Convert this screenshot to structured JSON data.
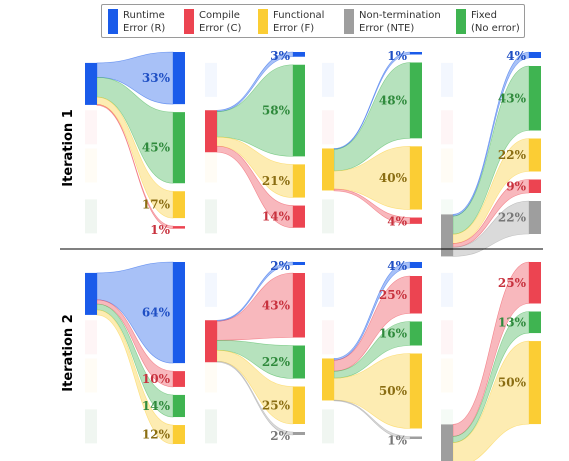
{
  "legend": [
    {
      "key": "R",
      "line1": "Runtime",
      "line2": "Error (R)"
    },
    {
      "key": "C",
      "line1": "Compile",
      "line2": "Error (C)"
    },
    {
      "key": "F",
      "line1": "Functional",
      "line2": "Error (F)"
    },
    {
      "key": "NTE",
      "line1": "Non-termination",
      "line2": "Error (NTE)"
    },
    {
      "key": "Fixed",
      "line1": "Fixed",
      "line2": "(No error)"
    }
  ],
  "colors": {
    "R": "#1a5bea",
    "C": "#ec4451",
    "F": "#fbcd34",
    "NTE": "#9e9e9e",
    "Fixed": "#3fb451"
  },
  "chart_data": {
    "type": "sankey",
    "rows": [
      {
        "label": "Iteration 1",
        "panels": [
          {
            "source": "R",
            "flows": [
              {
                "to": "R",
                "value": 33
              },
              {
                "to": "Fixed",
                "value": 45
              },
              {
                "to": "F",
                "value": 17
              },
              {
                "to": "C",
                "value": 1
              }
            ]
          },
          {
            "source": "C",
            "flows": [
              {
                "to": "R",
                "value": 3
              },
              {
                "to": "Fixed",
                "value": 58
              },
              {
                "to": "F",
                "value": 21
              },
              {
                "to": "C",
                "value": 14
              }
            ]
          },
          {
            "source": "F",
            "flows": [
              {
                "to": "R",
                "value": 1
              },
              {
                "to": "Fixed",
                "value": 48
              },
              {
                "to": "F",
                "value": 40
              },
              {
                "to": "C",
                "value": 4
              }
            ]
          },
          {
            "source": "NTE",
            "flows": [
              {
                "to": "R",
                "value": 4
              },
              {
                "to": "Fixed",
                "value": 43
              },
              {
                "to": "F",
                "value": 22
              },
              {
                "to": "C",
                "value": 9
              },
              {
                "to": "NTE",
                "value": 22
              }
            ]
          }
        ]
      },
      {
        "label": "Iteration 2",
        "panels": [
          {
            "source": "R",
            "flows": [
              {
                "to": "R",
                "value": 64
              },
              {
                "to": "C",
                "value": 10
              },
              {
                "to": "Fixed",
                "value": 14
              },
              {
                "to": "F",
                "value": 12
              }
            ]
          },
          {
            "source": "C",
            "flows": [
              {
                "to": "R",
                "value": 2
              },
              {
                "to": "C",
                "value": 43
              },
              {
                "to": "Fixed",
                "value": 22
              },
              {
                "to": "F",
                "value": 25
              },
              {
                "to": "NTE",
                "value": 2
              }
            ]
          },
          {
            "source": "F",
            "flows": [
              {
                "to": "R",
                "value": 4
              },
              {
                "to": "C",
                "value": 25
              },
              {
                "to": "Fixed",
                "value": 16
              },
              {
                "to": "F",
                "value": 50
              },
              {
                "to": "NTE",
                "value": 1
              }
            ]
          },
          {
            "source": "NTE",
            "flows": [
              {
                "to": "C",
                "value": 25
              },
              {
                "to": "Fixed",
                "value": 13
              },
              {
                "to": "F",
                "value": 50
              }
            ]
          }
        ]
      }
    ]
  }
}
